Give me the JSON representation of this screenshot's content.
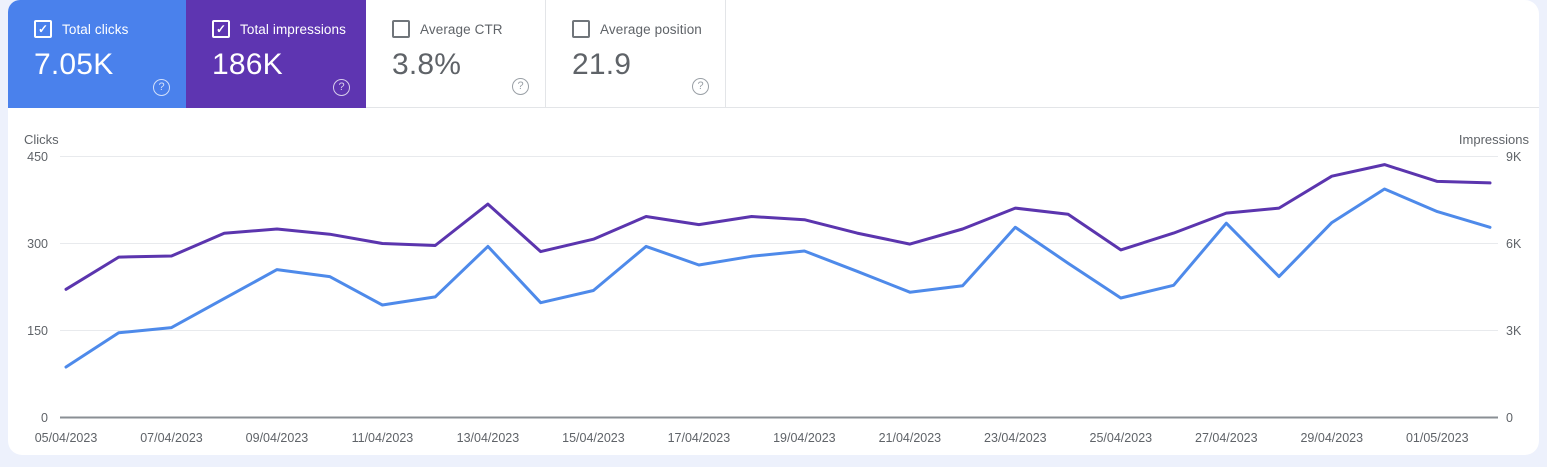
{
  "cards": [
    {
      "label": "Total clicks",
      "value": "7.05K",
      "checked": true,
      "color": "#4A81EC",
      "text_color": "#FFFFFF"
    },
    {
      "label": "Total impressions",
      "value": "186K",
      "checked": true,
      "color": "#5E35B1",
      "text_color": "#FFFFFF"
    },
    {
      "label": "Average CTR",
      "value": "3.8%",
      "checked": false,
      "color": "#FFFFFF",
      "text_color": "#5F6368"
    },
    {
      "label": "Average position",
      "value": "21.9",
      "checked": false,
      "color": "#FFFFFF",
      "text_color": "#5F6368"
    }
  ],
  "icons": {
    "check": "✓",
    "help": "?"
  },
  "chart_data": {
    "type": "line",
    "x": [
      "05/04/2023",
      "06/04/2023",
      "07/04/2023",
      "08/04/2023",
      "09/04/2023",
      "10/04/2023",
      "11/04/2023",
      "12/04/2023",
      "13/04/2023",
      "14/04/2023",
      "15/04/2023",
      "16/04/2023",
      "17/04/2023",
      "18/04/2023",
      "19/04/2023",
      "20/04/2023",
      "21/04/2023",
      "22/04/2023",
      "23/04/2023",
      "24/04/2023",
      "25/04/2023",
      "26/04/2023",
      "27/04/2023",
      "28/04/2023",
      "29/04/2023",
      "30/04/2023",
      "01/05/2023",
      "02/05/2023"
    ],
    "x_tick_labels": [
      "05/04/2023",
      "07/04/2023",
      "09/04/2023",
      "11/04/2023",
      "13/04/2023",
      "15/04/2023",
      "17/04/2023",
      "19/04/2023",
      "21/04/2023",
      "23/04/2023",
      "25/04/2023",
      "27/04/2023",
      "29/04/2023",
      "01/05/2023"
    ],
    "series": [
      {
        "name": "Clicks",
        "axis": "left",
        "color": "#4E8AEA",
        "values": [
          87,
          146,
          155,
          205,
          255,
          243,
          194,
          208,
          295,
          198,
          219,
          295,
          263,
          278,
          287,
          252,
          216,
          227,
          328,
          266,
          206,
          228,
          335,
          243,
          336,
          394,
          355,
          328
        ]
      },
      {
        "name": "Impressions",
        "axis": "right",
        "color": "#5B35AE",
        "values": [
          4420,
          5530,
          5570,
          6350,
          6500,
          6320,
          6000,
          5930,
          7360,
          5720,
          6150,
          6930,
          6650,
          6930,
          6820,
          6360,
          5980,
          6500,
          7220,
          7010,
          5780,
          6360,
          7050,
          7220,
          8320,
          8720,
          8140,
          8090
        ]
      }
    ],
    "left_axis": {
      "label": "Clicks",
      "ticks": [
        "0",
        "150",
        "300",
        "450"
      ],
      "tick_values": [
        0,
        150,
        300,
        450
      ],
      "max": 450
    },
    "right_axis": {
      "label": "Impressions",
      "ticks": [
        "0",
        "3K",
        "6K",
        "9K"
      ],
      "tick_values": [
        0,
        3000,
        6000,
        9000
      ],
      "max": 9000
    },
    "grid": "horizontal",
    "colors": {
      "gridline": "#E8EAED",
      "axis_baseline": "#8A8F94",
      "axis_text": "#5F6368"
    }
  }
}
